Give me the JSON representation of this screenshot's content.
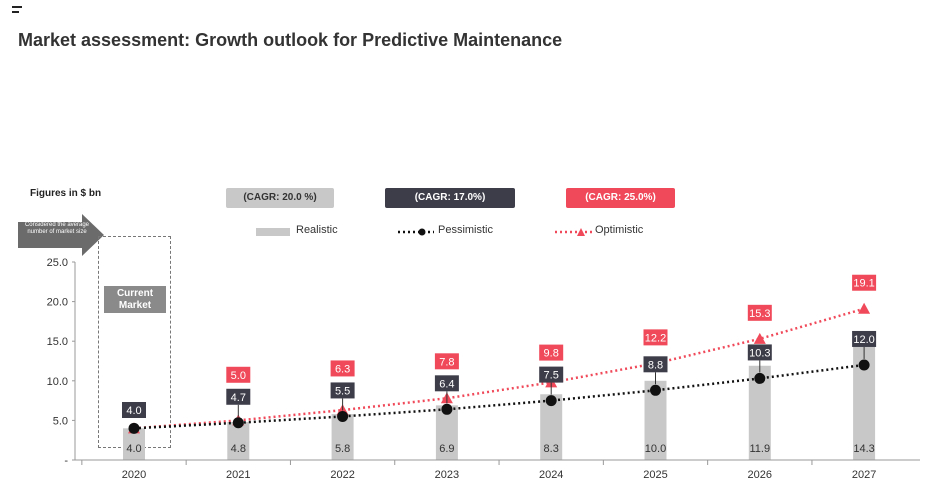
{
  "header": {
    "title": "Market assessment: Growth outlook for Predictive Maintenance"
  },
  "chart_data": {
    "type": "bar",
    "units_label": "Figures in $ bn",
    "categories": [
      "2020",
      "2021",
      "2022",
      "2023",
      "2024",
      "2025",
      "2026",
      "2027"
    ],
    "ylim": [
      0,
      25
    ],
    "yticks": [
      "-",
      "5.0",
      "10.0",
      "15.0",
      "20.0",
      "25.0"
    ],
    "grid": false,
    "legend_position": "top",
    "series": [
      {
        "name": "Realistic",
        "cagr": "(CAGR: 20.0 %)",
        "color": "#c8c8c8",
        "style": "bar",
        "values": [
          4.0,
          4.8,
          5.8,
          6.9,
          8.3,
          10.0,
          11.9,
          14.3
        ]
      },
      {
        "name": "Pessimistic",
        "cagr": "(CAGR: 17.0%)",
        "color": "#3d3d4a",
        "style": "dotted-line-circle",
        "values": [
          4.0,
          4.7,
          5.5,
          6.4,
          7.5,
          8.8,
          10.3,
          12.0
        ]
      },
      {
        "name": "Optimistic",
        "cagr": "(CAGR: 25.0%)",
        "color": "#f04a5a",
        "style": "dotted-line-triangle",
        "values": [
          4.0,
          5.0,
          6.3,
          7.8,
          9.8,
          12.2,
          15.3,
          19.1
        ]
      }
    ],
    "annotations": {
      "current_market_label": "Current Market",
      "current_market_note": "Considered the average number of market size"
    }
  }
}
